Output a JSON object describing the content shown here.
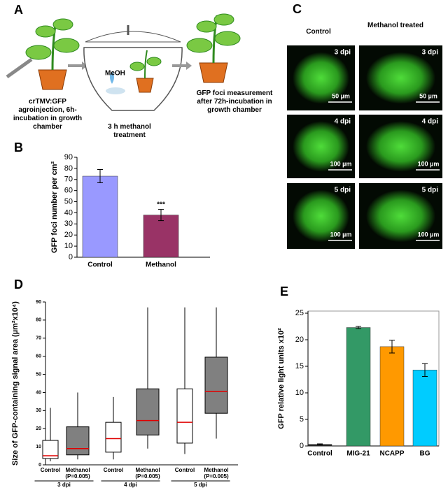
{
  "panel_labels": [
    "A",
    "B",
    "C",
    "D",
    "E"
  ],
  "panel_a": {
    "steps": [
      "crTMV:GFP agroinjection, 6h-incubation in growth chamber",
      "3 h methanol treatment",
      "GFP foci measurement after 72h-incubation in growth chamber"
    ],
    "reagent": "MeOH"
  },
  "panel_c": {
    "columns": [
      "Control",
      "Methanol treated"
    ],
    "tiles": [
      {
        "dpi": "3 dpi",
        "scale": "50 µm"
      },
      {
        "dpi": "3 dpi",
        "scale": "50 µm"
      },
      {
        "dpi": "4 dpi",
        "scale": "100 µm"
      },
      {
        "dpi": "4 dpi",
        "scale": "100 µm"
      },
      {
        "dpi": "5 dpi",
        "scale": "100 µm"
      },
      {
        "dpi": "5 dpi",
        "scale": "100 µm"
      }
    ]
  },
  "chart_data": [
    {
      "type": "bar",
      "y_label": "GFP foci number per cm²",
      "categories": [
        "Control",
        "Methanol"
      ],
      "values": [
        73,
        38
      ],
      "errors": [
        6,
        5
      ],
      "colors": [
        "#9999ff",
        "#993366"
      ],
      "annotations": [
        null,
        "***"
      ],
      "ylim": [
        0,
        90
      ],
      "yticks": [
        0,
        10,
        20,
        30,
        40,
        50,
        60,
        70,
        80,
        90
      ]
    },
    {
      "type": "box",
      "y_label": "Size of GFP-containing signal area  (µm²x10⁴)",
      "categories": [
        "Control",
        "Methanol (P=0.005)",
        "Control",
        "Methanol (P=0.005)",
        "Control",
        "Methanol (P=0.005)"
      ],
      "groups": [
        "3 dpi",
        "4 dpi",
        "5 dpi"
      ],
      "min": [
        2,
        3,
        3,
        9,
        6,
        14.5
      ],
      "q1": [
        3.5,
        5.5,
        7,
        16.5,
        12,
        28.5
      ],
      "median": [
        5,
        9,
        14.5,
        24.5,
        23.5,
        40.5
      ],
      "q3": [
        13.5,
        21,
        23.5,
        42,
        42,
        59.5
      ],
      "max": [
        31.5,
        40,
        37.5,
        87,
        87,
        87
      ],
      "colors": [
        "#ffffff",
        "#808080",
        "#ffffff",
        "#808080",
        "#ffffff",
        "#808080"
      ],
      "median_color": "#e00000",
      "ylim": [
        0,
        90
      ],
      "yticks": [
        0,
        10,
        20,
        30,
        40,
        50,
        60,
        70,
        80,
        90
      ]
    },
    {
      "type": "bar",
      "y_label": "GFP relative light units x10²",
      "categories": [
        "Control",
        "MIG-21",
        "NCAPP",
        "BG"
      ],
      "values": [
        0.3,
        22.3,
        18.7,
        14.3
      ],
      "errors": [
        0.1,
        0.2,
        1.2,
        1.2
      ],
      "colors": [
        "#222222",
        "#339966",
        "#ff9900",
        "#00ccff"
      ],
      "ylim": [
        0,
        25.4
      ],
      "yticks": [
        0,
        5,
        10,
        15,
        20,
        25
      ]
    }
  ]
}
